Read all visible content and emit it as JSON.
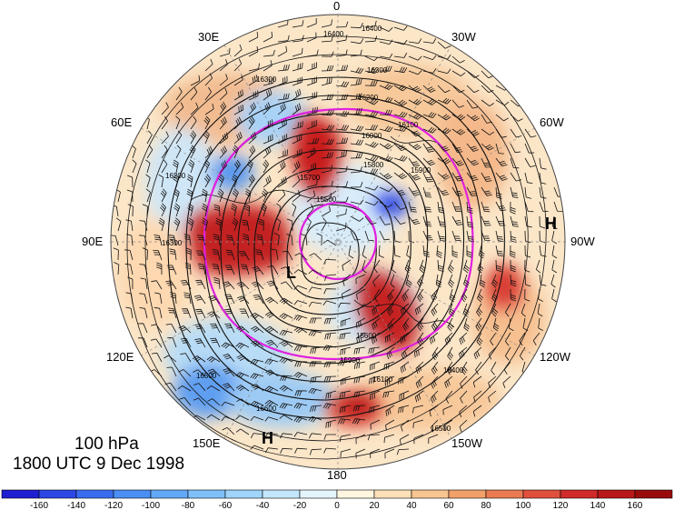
{
  "map": {
    "level_label": "100 hPa",
    "time_label": "1800 UTC 9 Dec 1998",
    "longitude_labels": {
      "top": "0",
      "ne30": "30W",
      "ne60": "60W",
      "right": "90W",
      "se120": "120W",
      "se150": "150W",
      "bottom": "180",
      "sw150": "150E",
      "sw120": "120E",
      "left": "90E",
      "nw60": "60E",
      "nw30": "30E"
    },
    "pressure_centers": [
      {
        "label": "H",
        "where": "east"
      },
      {
        "label": "L",
        "where": "pole"
      },
      {
        "label": "H",
        "where": "south"
      }
    ],
    "contour_labels": [
      "16400",
      "16400",
      "16300",
      "16300",
      "16200",
      "16100",
      "16000",
      "15900",
      "15800",
      "15700",
      "15600",
      "15500",
      "15900",
      "16100",
      "16200",
      "16300",
      "16400",
      "16500",
      "16600",
      "16500"
    ],
    "colors": {
      "contour": "#111111",
      "highlight_contour": "#e020e0",
      "warm": "#c81e1e",
      "cool": "#2a6cd8"
    }
  },
  "colorbar": {
    "ticks": [
      "-160",
      "-140",
      "-120",
      "-100",
      "-80",
      "-60",
      "-40",
      "-20",
      "0",
      "20",
      "40",
      "60",
      "80",
      "100",
      "120",
      "140",
      "160"
    ],
    "colors": [
      "#1e1ed2",
      "#2b48e6",
      "#3a6cf0",
      "#4a8ef6",
      "#62a8f8",
      "#80c0fa",
      "#a0d4fb",
      "#c4e6fc",
      "#e4f4fd",
      "#fff6e0",
      "#fde0b8",
      "#f8c490",
      "#f2a06a",
      "#ea7a52",
      "#e0503c",
      "#d02a2a",
      "#b81818",
      "#9a0c0c"
    ]
  }
}
